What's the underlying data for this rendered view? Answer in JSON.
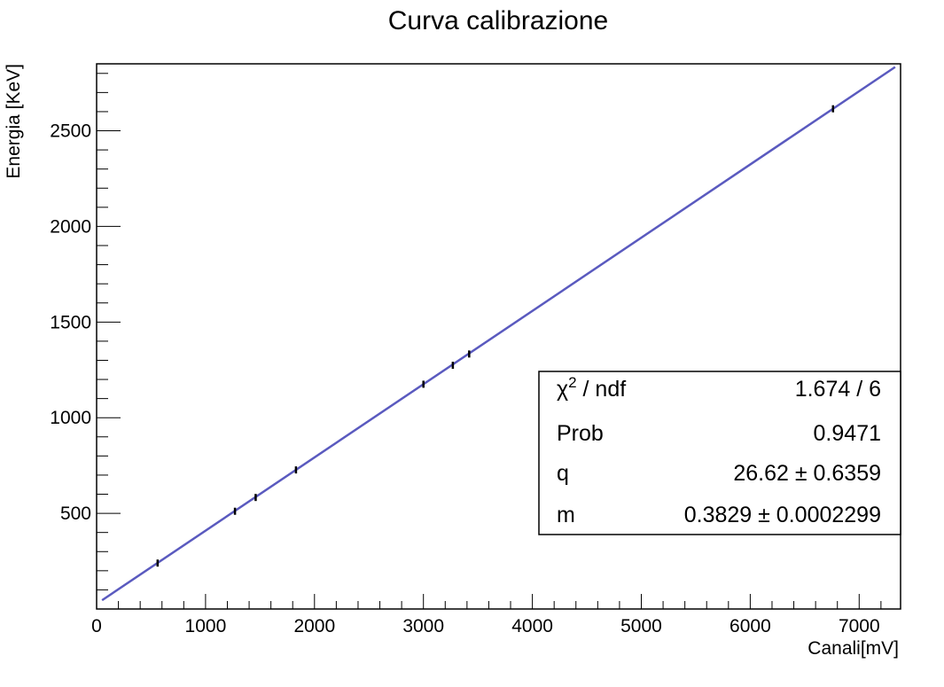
{
  "chart_data": {
    "type": "scatter",
    "title": "Curva calibrazione",
    "xlabel": "Canali[mV]",
    "ylabel": "Energia [KeV]",
    "xlim": [
      0,
      7380
    ],
    "ylim": [
      0,
      2850
    ],
    "x_ticks": [
      0,
      1000,
      2000,
      3000,
      4000,
      5000,
      6000,
      7000
    ],
    "y_ticks": [
      500,
      1000,
      1500,
      2000,
      2500
    ],
    "x_tick_labels": [
      "0",
      "1000",
      "2000",
      "3000",
      "4000",
      "5000",
      "6000",
      "7000"
    ],
    "y_tick_labels": [
      "500",
      "1000",
      "1500",
      "2000",
      "2500"
    ],
    "grid": false,
    "legend": "none",
    "points": [
      {
        "x": 560,
        "y": 240
      },
      {
        "x": 1270,
        "y": 511
      },
      {
        "x": 1460,
        "y": 583
      },
      {
        "x": 1830,
        "y": 727
      },
      {
        "x": 3000,
        "y": 1175
      },
      {
        "x": 3270,
        "y": 1274
      },
      {
        "x": 3420,
        "y": 1333
      },
      {
        "x": 6760,
        "y": 2615
      }
    ],
    "fit": {
      "type": "linear",
      "q": 26.62,
      "m": 0.3829,
      "x_range": [
        50,
        7330
      ],
      "color": "#5a5abf"
    },
    "point_color": "#000000"
  },
  "stats": {
    "rows": [
      {
        "label_main": "χ",
        "label_sup": "2",
        "label_rest": " / ndf",
        "value": "1.674 / 6"
      },
      {
        "label_main": "Prob",
        "label_sup": "",
        "label_rest": "",
        "value": "0.9471"
      },
      {
        "label_main": "q",
        "label_sup": "",
        "label_rest": "",
        "value": "26.62  ± 0.6359"
      },
      {
        "label_main": "m",
        "label_sup": "",
        "label_rest": "",
        "value": "0.3829  ± 0.0002299"
      }
    ]
  }
}
